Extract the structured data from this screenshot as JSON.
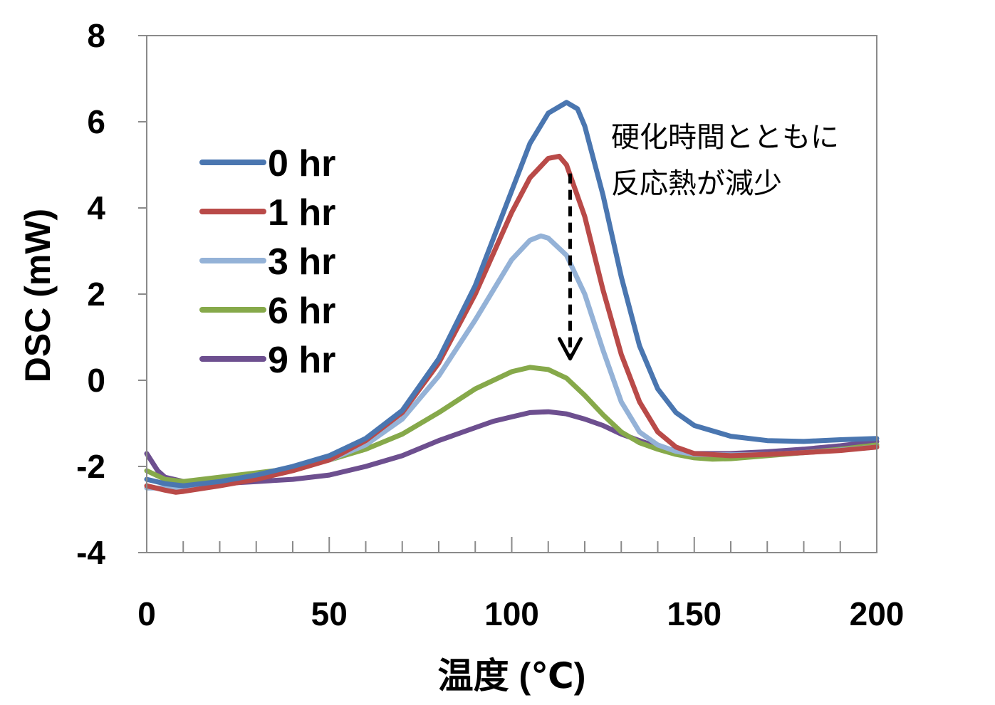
{
  "chart_data": {
    "type": "line",
    "title": "",
    "xlabel": "温度 (℃)",
    "ylabel": "DSC (mW)",
    "xlim": [
      0,
      200
    ],
    "ylim": [
      -4,
      8
    ],
    "xticks": [
      0,
      50,
      100,
      150,
      200
    ],
    "xticks_minor": [
      10,
      20,
      30,
      40,
      60,
      70,
      80,
      90,
      110,
      120,
      130,
      140,
      160,
      170,
      180,
      190
    ],
    "yticks": [
      -4,
      -2,
      0,
      2,
      4,
      6,
      8
    ],
    "xtick_labels": [
      "0",
      "50",
      "100",
      "150",
      "200"
    ],
    "ytick_labels": [
      "-4",
      "-2",
      "0",
      "2",
      "4",
      "6",
      "8"
    ],
    "grid": false,
    "legend_position": "left",
    "annotation": {
      "lines": [
        "硬化時間とともに",
        "反応熱が減少"
      ],
      "arrow_from": [
        116,
        4.8
      ],
      "arrow_to": [
        116,
        0.5
      ]
    },
    "series": [
      {
        "name": "0 hr",
        "color": "#4a76b0",
        "x": [
          0,
          5,
          10,
          20,
          30,
          40,
          50,
          60,
          70,
          80,
          90,
          100,
          105,
          110,
          115,
          118,
          120,
          125,
          130,
          135,
          140,
          145,
          150,
          160,
          170,
          180,
          190,
          200
        ],
        "y": [
          -2.3,
          -2.4,
          -2.45,
          -2.35,
          -2.2,
          -2.0,
          -1.75,
          -1.35,
          -0.7,
          0.5,
          2.2,
          4.4,
          5.5,
          6.2,
          6.45,
          6.3,
          5.9,
          4.3,
          2.4,
          0.8,
          -0.2,
          -0.75,
          -1.05,
          -1.3,
          -1.4,
          -1.42,
          -1.38,
          -1.35
        ]
      },
      {
        "name": "1 hr",
        "color": "#b94a48",
        "x": [
          0,
          5,
          8,
          10,
          20,
          30,
          40,
          50,
          60,
          70,
          80,
          90,
          100,
          105,
          110,
          113,
          115,
          120,
          125,
          130,
          135,
          140,
          145,
          150,
          160,
          170,
          180,
          190,
          200
        ],
        "y": [
          -2.45,
          -2.55,
          -2.6,
          -2.58,
          -2.45,
          -2.3,
          -2.1,
          -1.85,
          -1.4,
          -0.75,
          0.4,
          2.0,
          3.9,
          4.7,
          5.15,
          5.2,
          5.0,
          3.8,
          2.1,
          0.6,
          -0.5,
          -1.2,
          -1.55,
          -1.7,
          -1.75,
          -1.72,
          -1.68,
          -1.63,
          -1.55
        ]
      },
      {
        "name": "3 hr",
        "color": "#94b2d7",
        "x": [
          0,
          5,
          10,
          20,
          30,
          40,
          50,
          60,
          70,
          80,
          90,
          100,
          105,
          108,
          110,
          115,
          120,
          125,
          130,
          135,
          140,
          145,
          150,
          160,
          170,
          180,
          190,
          200
        ],
        "y": [
          -2.5,
          -2.5,
          -2.48,
          -2.35,
          -2.2,
          -2.05,
          -1.85,
          -1.5,
          -0.9,
          0.1,
          1.4,
          2.8,
          3.25,
          3.35,
          3.3,
          2.9,
          2.0,
          0.7,
          -0.5,
          -1.2,
          -1.5,
          -1.65,
          -1.72,
          -1.73,
          -1.72,
          -1.68,
          -1.62,
          -1.55
        ]
      },
      {
        "name": "6 hr",
        "color": "#86a94a",
        "x": [
          0,
          5,
          10,
          20,
          30,
          40,
          50,
          60,
          70,
          80,
          90,
          100,
          105,
          110,
          115,
          120,
          125,
          130,
          135,
          140,
          145,
          150,
          155,
          160,
          170,
          180,
          190,
          200
        ],
        "y": [
          -2.1,
          -2.3,
          -2.35,
          -2.25,
          -2.15,
          -2.05,
          -1.85,
          -1.6,
          -1.25,
          -0.75,
          -0.2,
          0.2,
          0.3,
          0.25,
          0.05,
          -0.35,
          -0.8,
          -1.2,
          -1.45,
          -1.6,
          -1.72,
          -1.8,
          -1.83,
          -1.82,
          -1.75,
          -1.68,
          -1.6,
          -1.5
        ]
      },
      {
        "name": "9 hr",
        "color": "#6d4f8f",
        "x": [
          0,
          3,
          5,
          10,
          20,
          30,
          40,
          50,
          60,
          70,
          80,
          90,
          95,
          100,
          105,
          110,
          115,
          120,
          125,
          130,
          140,
          150,
          160,
          170,
          180,
          190,
          200
        ],
        "y": [
          -1.7,
          -2.1,
          -2.25,
          -2.35,
          -2.4,
          -2.35,
          -2.3,
          -2.2,
          -2.0,
          -1.75,
          -1.4,
          -1.1,
          -0.95,
          -0.85,
          -0.75,
          -0.73,
          -0.78,
          -0.9,
          -1.05,
          -1.25,
          -1.55,
          -1.7,
          -1.7,
          -1.66,
          -1.6,
          -1.52,
          -1.42
        ]
      }
    ]
  }
}
